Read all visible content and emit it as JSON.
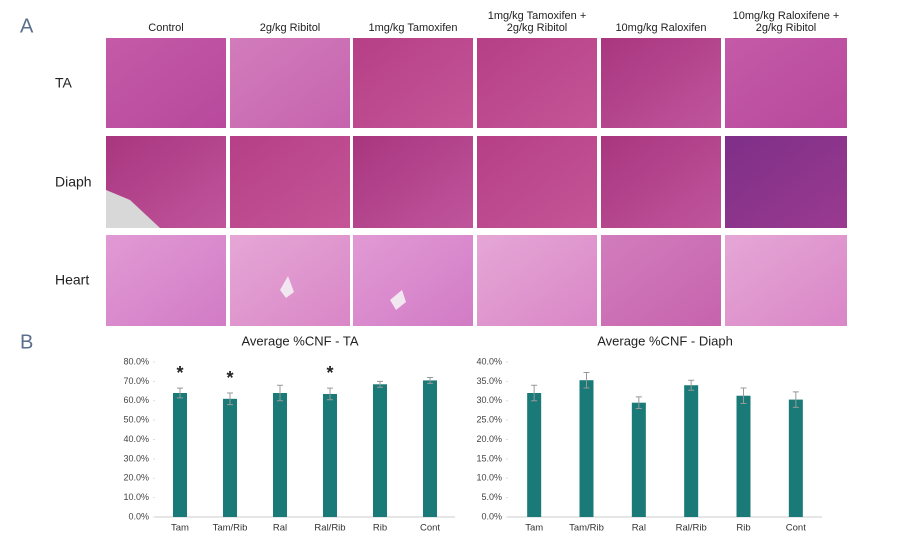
{
  "panels": {
    "a": "A",
    "b": "B",
    "columns": [
      [
        "Control"
      ],
      [
        "2g/kg Ribitol"
      ],
      [
        "1mg/kg Tamoxifen"
      ],
      [
        "1mg/kg Tamoxifen +",
        "2g/kg Ribitol"
      ],
      [
        "10mg/kg Raloxifen"
      ],
      [
        "10mg/kg Raloxifene +",
        "2g/kg Ribitol"
      ]
    ],
    "rows": [
      "TA",
      "Diaph",
      "Heart"
    ]
  },
  "chart_data": [
    {
      "type": "bar",
      "title": "Average %CNF - TA",
      "categories": [
        "Tam",
        "Tam/Rib",
        "Ral",
        "Ral/Rib",
        "Rib",
        "Cont"
      ],
      "values": [
        64,
        61,
        64,
        63.5,
        68.5,
        70.5
      ],
      "errors": [
        2.5,
        3,
        4,
        3,
        1.5,
        1.5
      ],
      "significance": [
        "*",
        "*",
        null,
        "*",
        null,
        null
      ],
      "color": "#1a7a77",
      "ylim": [
        0,
        80
      ],
      "yticks": [
        {
          "value": 0,
          "label": "0.0%"
        },
        {
          "value": 10,
          "label": "10.0%"
        },
        {
          "value": 20,
          "label": "20.0%"
        },
        {
          "value": 30,
          "label": "30.0%"
        },
        {
          "value": 40,
          "label": "40.0%"
        },
        {
          "value": 50,
          "label": "50.0%"
        },
        {
          "value": 60,
          "label": "60.0%"
        },
        {
          "value": 70,
          "label": "70.0%"
        },
        {
          "value": 80,
          "label": "80.0%"
        }
      ]
    },
    {
      "type": "bar",
      "title": "Average %CNF - Diaph",
      "categories": [
        "Tam",
        "Tam/Rib",
        "Ral",
        "Ral/Rib",
        "Rib",
        "Cont"
      ],
      "values": [
        32,
        35.3,
        29.5,
        34,
        31.3,
        30.3
      ],
      "errors": [
        2,
        2,
        1.5,
        1.3,
        2,
        2
      ],
      "color": "#1a7a77",
      "ylim": [
        0,
        40
      ],
      "yticks": [
        {
          "value": 0,
          "label": "0.0%"
        },
        {
          "value": 5,
          "label": "5.0%"
        },
        {
          "value": 10,
          "label": "10.0%"
        },
        {
          "value": 15,
          "label": "15.0%"
        },
        {
          "value": 20,
          "label": "20.0%"
        },
        {
          "value": 25,
          "label": "25.0%"
        },
        {
          "value": 30,
          "label": "30.0%"
        },
        {
          "value": 35,
          "label": "35.0%"
        },
        {
          "value": 40,
          "label": "40.0%"
        }
      ]
    }
  ]
}
